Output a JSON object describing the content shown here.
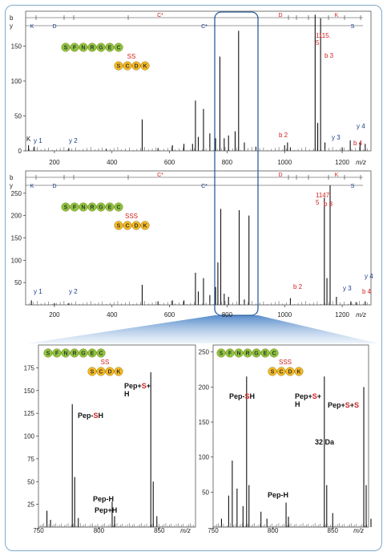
{
  "chart_data": [
    {
      "type": "bar",
      "panel": "top",
      "ylim": [
        0,
        200
      ],
      "xlim": [
        100,
        1300
      ],
      "yticks": [
        0,
        50,
        100,
        150
      ],
      "xticks": [
        200,
        400,
        600,
        800,
        1000,
        1200
      ],
      "xunit": "m/z",
      "b_label": "b",
      "y_label": "y",
      "b_ladder": [
        "C*",
        "D",
        "K"
      ],
      "y_ladder": [
        "K",
        "D",
        "C*",
        "S"
      ],
      "seq_green": [
        "S",
        "F",
        "N",
        "R",
        "G",
        "E",
        "C"
      ],
      "seq_orange": [
        "S",
        "C",
        "D",
        "K"
      ],
      "link_label": "SS",
      "peak_label": [
        "1115.",
        "5"
      ],
      "ion_labels": [
        "y 1",
        "y 2",
        "b 2",
        "b 3",
        "y 3",
        "y 4",
        "b 4",
        "K"
      ],
      "peaks": [
        {
          "x": 110,
          "y": 8
        },
        {
          "x": 130,
          "y": 6
        },
        {
          "x": 250,
          "y": 4
        },
        {
          "x": 380,
          "y": 3
        },
        {
          "x": 505,
          "y": 45
        },
        {
          "x": 560,
          "y": 4
        },
        {
          "x": 610,
          "y": 8
        },
        {
          "x": 650,
          "y": 10
        },
        {
          "x": 680,
          "y": 10
        },
        {
          "x": 690,
          "y": 72
        },
        {
          "x": 700,
          "y": 20
        },
        {
          "x": 718,
          "y": 60
        },
        {
          "x": 740,
          "y": 25
        },
        {
          "x": 760,
          "y": 18
        },
        {
          "x": 775,
          "y": 135
        },
        {
          "x": 790,
          "y": 18
        },
        {
          "x": 805,
          "y": 22
        },
        {
          "x": 828,
          "y": 28
        },
        {
          "x": 840,
          "y": 172
        },
        {
          "x": 860,
          "y": 12
        },
        {
          "x": 900,
          "y": 6
        },
        {
          "x": 1000,
          "y": 8
        },
        {
          "x": 1010,
          "y": 12
        },
        {
          "x": 1020,
          "y": 5
        },
        {
          "x": 1106,
          "y": 195
        },
        {
          "x": 1115,
          "y": 40
        },
        {
          "x": 1125,
          "y": 190
        },
        {
          "x": 1140,
          "y": 12
        },
        {
          "x": 1200,
          "y": 5
        },
        {
          "x": 1228,
          "y": 15
        },
        {
          "x": 1262,
          "y": 12
        },
        {
          "x": 1280,
          "y": 10
        }
      ]
    },
    {
      "type": "bar",
      "panel": "middle",
      "ylim": [
        0,
        300
      ],
      "xlim": [
        100,
        1300
      ],
      "yticks": [
        50,
        100,
        150,
        200,
        250
      ],
      "xticks": [
        200,
        400,
        600,
        800,
        1000,
        1200
      ],
      "xunit": "m/z",
      "b_label": "b",
      "y_label": "y",
      "b_ladder": [
        "C*",
        "D",
        "K"
      ],
      "y_ladder": [
        "K",
        "D",
        "C*",
        "S"
      ],
      "seq_green": [
        "S",
        "F",
        "N",
        "R",
        "G",
        "E",
        "C"
      ],
      "seq_orange": [
        "S",
        "C",
        "D",
        "K"
      ],
      "link_label": "SSS",
      "peak_label": [
        "1147.",
        "5"
      ],
      "ion_labels": [
        "y 1",
        "y 2",
        "b 2",
        "b 3",
        "y 3",
        "b 4",
        "y 4"
      ],
      "peaks": [
        {
          "x": 120,
          "y": 10
        },
        {
          "x": 200,
          "y": 4
        },
        {
          "x": 250,
          "y": 4
        },
        {
          "x": 505,
          "y": 45
        },
        {
          "x": 560,
          "y": 8
        },
        {
          "x": 610,
          "y": 10
        },
        {
          "x": 650,
          "y": 10
        },
        {
          "x": 690,
          "y": 72
        },
        {
          "x": 700,
          "y": 30
        },
        {
          "x": 718,
          "y": 60
        },
        {
          "x": 740,
          "y": 22
        },
        {
          "x": 760,
          "y": 40
        },
        {
          "x": 768,
          "y": 95
        },
        {
          "x": 778,
          "y": 215
        },
        {
          "x": 790,
          "y": 25
        },
        {
          "x": 805,
          "y": 18
        },
        {
          "x": 842,
          "y": 212
        },
        {
          "x": 860,
          "y": 12
        },
        {
          "x": 876,
          "y": 200
        },
        {
          "x": 1020,
          "y": 15
        },
        {
          "x": 1138,
          "y": 240
        },
        {
          "x": 1147,
          "y": 60
        },
        {
          "x": 1158,
          "y": 268
        },
        {
          "x": 1180,
          "y": 18
        },
        {
          "x": 1230,
          "y": 8
        },
        {
          "x": 1250,
          "y": 6
        },
        {
          "x": 1280,
          "y": 8
        }
      ]
    },
    {
      "type": "bar",
      "panel": "zoom-left",
      "ylim": [
        0,
        200
      ],
      "xlim": [
        750,
        880
      ],
      "yticks": [
        25,
        50,
        75,
        100,
        125,
        150,
        175
      ],
      "xticks": [
        750,
        800,
        850
      ],
      "xunit": "m/z",
      "seq_green": [
        "S",
        "F",
        "N",
        "R",
        "G",
        "E",
        "C"
      ],
      "seq_orange": [
        "S",
        "C",
        "D",
        "K"
      ],
      "link_label": "SS",
      "annotations": [
        {
          "x": 778,
          "parts": [
            "Pep-",
            "S",
            "H"
          ]
        },
        {
          "x": 812,
          "parts": [
            "Pep-H"
          ]
        },
        {
          "x": 814,
          "parts": [
            "Pep+H"
          ]
        },
        {
          "x": 843,
          "parts": [
            "Pep+",
            "S",
            "+"
          ],
          "parts2": [
            "H"
          ]
        }
      ],
      "peaks": [
        {
          "x": 757,
          "y": 18
        },
        {
          "x": 760,
          "y": 8
        },
        {
          "x": 778,
          "y": 135
        },
        {
          "x": 780,
          "y": 55
        },
        {
          "x": 783,
          "y": 10
        },
        {
          "x": 811,
          "y": 28
        },
        {
          "x": 813,
          "y": 12
        },
        {
          "x": 843,
          "y": 170
        },
        {
          "x": 845,
          "y": 50
        },
        {
          "x": 848,
          "y": 12
        }
      ]
    },
    {
      "type": "bar",
      "panel": "zoom-right",
      "ylim": [
        0,
        260
      ],
      "xlim": [
        750,
        880
      ],
      "yticks": [
        50,
        100,
        150,
        200,
        250
      ],
      "xticks": [
        750,
        800,
        850
      ],
      "xunit": "m/z",
      "seq_green": [
        "S",
        "F",
        "N",
        "R",
        "G",
        "E",
        "C"
      ],
      "seq_orange": [
        "S",
        "C",
        "D",
        "K"
      ],
      "link_label": "SSS",
      "annotations": [
        {
          "x": 778,
          "parts": [
            "Pep-",
            "S",
            "H"
          ]
        },
        {
          "x": 811,
          "parts": [
            "Pep-H"
          ]
        },
        {
          "x": 843,
          "parts": [
            "Pep+",
            "S",
            "+"
          ],
          "parts2": [
            "H"
          ]
        },
        {
          "x": 876,
          "parts": [
            "Pep+",
            "S",
            "+",
            "S"
          ]
        },
        {
          "x": 870,
          "parts": [
            "32 Da"
          ]
        }
      ],
      "peaks": [
        {
          "x": 757,
          "y": 12
        },
        {
          "x": 763,
          "y": 45
        },
        {
          "x": 766,
          "y": 95
        },
        {
          "x": 770,
          "y": 55
        },
        {
          "x": 775,
          "y": 30
        },
        {
          "x": 778,
          "y": 215
        },
        {
          "x": 780,
          "y": 60
        },
        {
          "x": 790,
          "y": 22
        },
        {
          "x": 795,
          "y": 12
        },
        {
          "x": 811,
          "y": 35
        },
        {
          "x": 813,
          "y": 15
        },
        {
          "x": 843,
          "y": 215
        },
        {
          "x": 845,
          "y": 60
        },
        {
          "x": 850,
          "y": 20
        },
        {
          "x": 876,
          "y": 200
        },
        {
          "x": 878,
          "y": 60
        },
        {
          "x": 882,
          "y": 12
        }
      ]
    }
  ]
}
